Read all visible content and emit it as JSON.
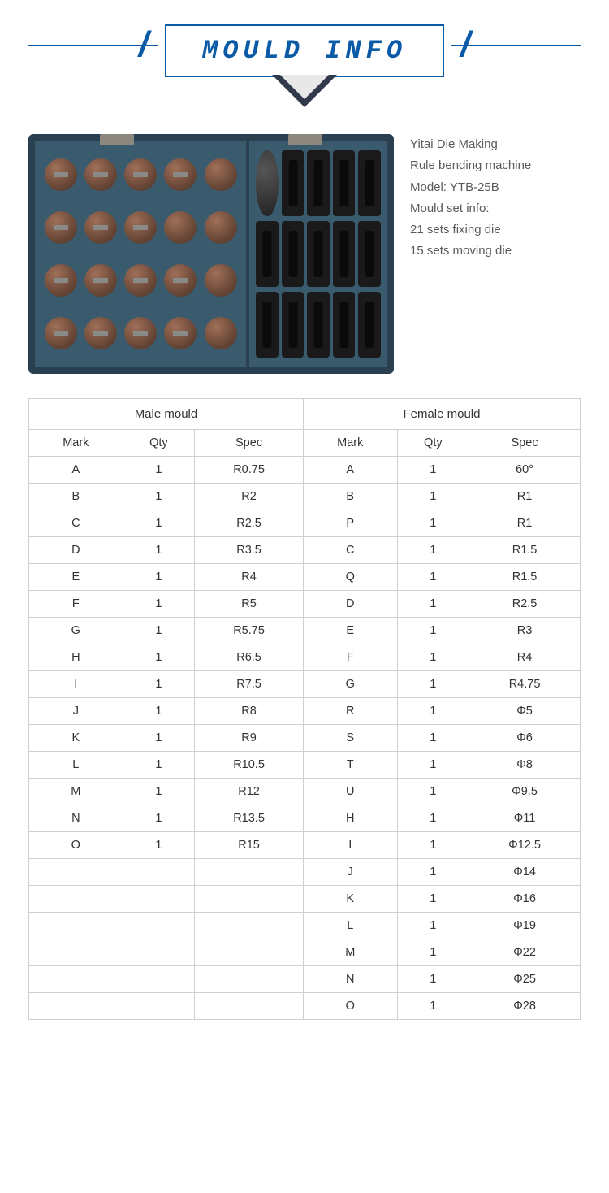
{
  "banner": {
    "title": "MOULD INFO",
    "title_color": "#0a5aa8"
  },
  "product": {
    "lines": [
      "Yitai Die Making",
      "Rule bending machine",
      "Model: YTB-25B",
      "Mould set info:",
      "21 sets fixing die",
      "15 sets moving die"
    ]
  },
  "table": {
    "group_headers": [
      "Male mould",
      "Female mould"
    ],
    "sub_headers": [
      "Mark",
      "Qty",
      "Spec",
      "Mark",
      "Qty",
      "Spec"
    ],
    "rows": [
      [
        "A",
        "1",
        "R0.75",
        "A",
        "1",
        "60°"
      ],
      [
        "B",
        "1",
        "R2",
        "B",
        "1",
        "R1"
      ],
      [
        "C",
        "1",
        "R2.5",
        "P",
        "1",
        "R1"
      ],
      [
        "D",
        "1",
        "R3.5",
        "C",
        "1",
        "R1.5"
      ],
      [
        "E",
        "1",
        "R4",
        "Q",
        "1",
        "R1.5"
      ],
      [
        "F",
        "1",
        "R5",
        "D",
        "1",
        "R2.5"
      ],
      [
        "G",
        "1",
        "R5.75",
        "E",
        "1",
        "R3"
      ],
      [
        "H",
        "1",
        "R6.5",
        "F",
        "1",
        "R4"
      ],
      [
        "I",
        "1",
        "R7.5",
        "G",
        "1",
        "R4.75"
      ],
      [
        "J",
        "1",
        "R8",
        "R",
        "1",
        "Φ5"
      ],
      [
        "K",
        "1",
        "R9",
        "S",
        "1",
        "Φ6"
      ],
      [
        "L",
        "1",
        "R10.5",
        "T",
        "1",
        "Φ8"
      ],
      [
        "M",
        "1",
        "R12",
        "U",
        "1",
        "Φ9.5"
      ],
      [
        "N",
        "1",
        "R13.5",
        "H",
        "1",
        "Φ11"
      ],
      [
        "O",
        "1",
        "R15",
        "I",
        "1",
        "Φ12.5"
      ],
      [
        "",
        "",
        "",
        "J",
        "1",
        "Φ14"
      ],
      [
        "",
        "",
        "",
        "K",
        "1",
        "Φ16"
      ],
      [
        "",
        "",
        "",
        "L",
        "1",
        "Φ19"
      ],
      [
        "",
        "",
        "",
        "M",
        "1",
        "Φ22"
      ],
      [
        "",
        "",
        "",
        "N",
        "1",
        "Φ25"
      ],
      [
        "",
        "",
        "",
        "O",
        "1",
        "Φ28"
      ]
    ],
    "border_color": "#cfcfcf",
    "text_color": "#333333"
  }
}
